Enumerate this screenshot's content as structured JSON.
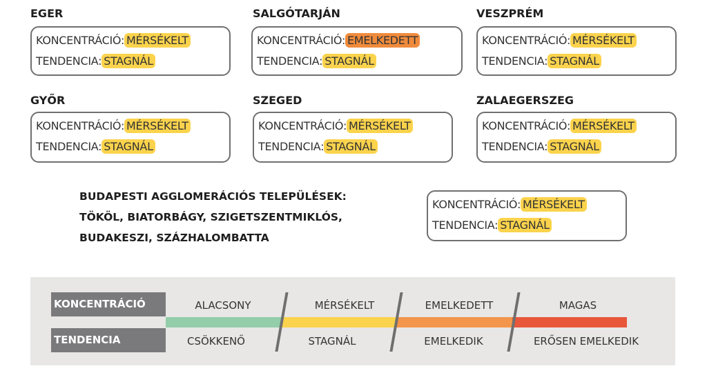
{
  "labels": {
    "concentration": "KONCENTRÁCIÓ:",
    "trend": "TENDENCIA:"
  },
  "cities": [
    {
      "name": "EGER",
      "concentration": "MÉRSÉKELT",
      "trend": "STAGNÁL"
    },
    {
      "name": "SALGÓTARJÁN",
      "concentration": "EMELKEDETT",
      "trend": "STAGNÁL"
    },
    {
      "name": "VESZPRÉM",
      "concentration": "MÉRSÉKELT",
      "trend": "STAGNÁL"
    },
    {
      "name": "GYŐR",
      "concentration": "MÉRSÉKELT",
      "trend": "STAGNÁL"
    },
    {
      "name": "SZEGED",
      "concentration": "MÉRSÉKELT",
      "trend": "STAGNÁL"
    },
    {
      "name": "ZALAEGERSZEG",
      "concentration": "MÉRSÉKELT",
      "trend": "STAGNÁL"
    }
  ],
  "budapest": {
    "lines": [
      "BUDAPESTI AGGLOMERÁCIÓS TELEPÜLÉSEK:",
      "TÖKÖL, BIATORBÁGY, SZIGETSZENTMIKLÓS,",
      "BUDAKESZI, SZÁZHALOMBATTA"
    ],
    "concentration": "MÉRSÉKELT",
    "trend": "STAGNÁL"
  },
  "legend": {
    "concentration_label": "KONCENTRÁCIÓ",
    "trend_label": "TENDENCIA",
    "concentration_levels": [
      "ALACSONY",
      "MÉRSÉKELT",
      "EMELKEDETT",
      "MAGAS"
    ],
    "trend_levels": [
      "CSÖKKENŐ",
      "STAGNÁL",
      "EMELKEDIK",
      "ERŐSEN EMELKEDIK"
    ],
    "colors": [
      "#93cdaa",
      "#fbd34c",
      "#f3954a",
      "#e8573a"
    ]
  }
}
